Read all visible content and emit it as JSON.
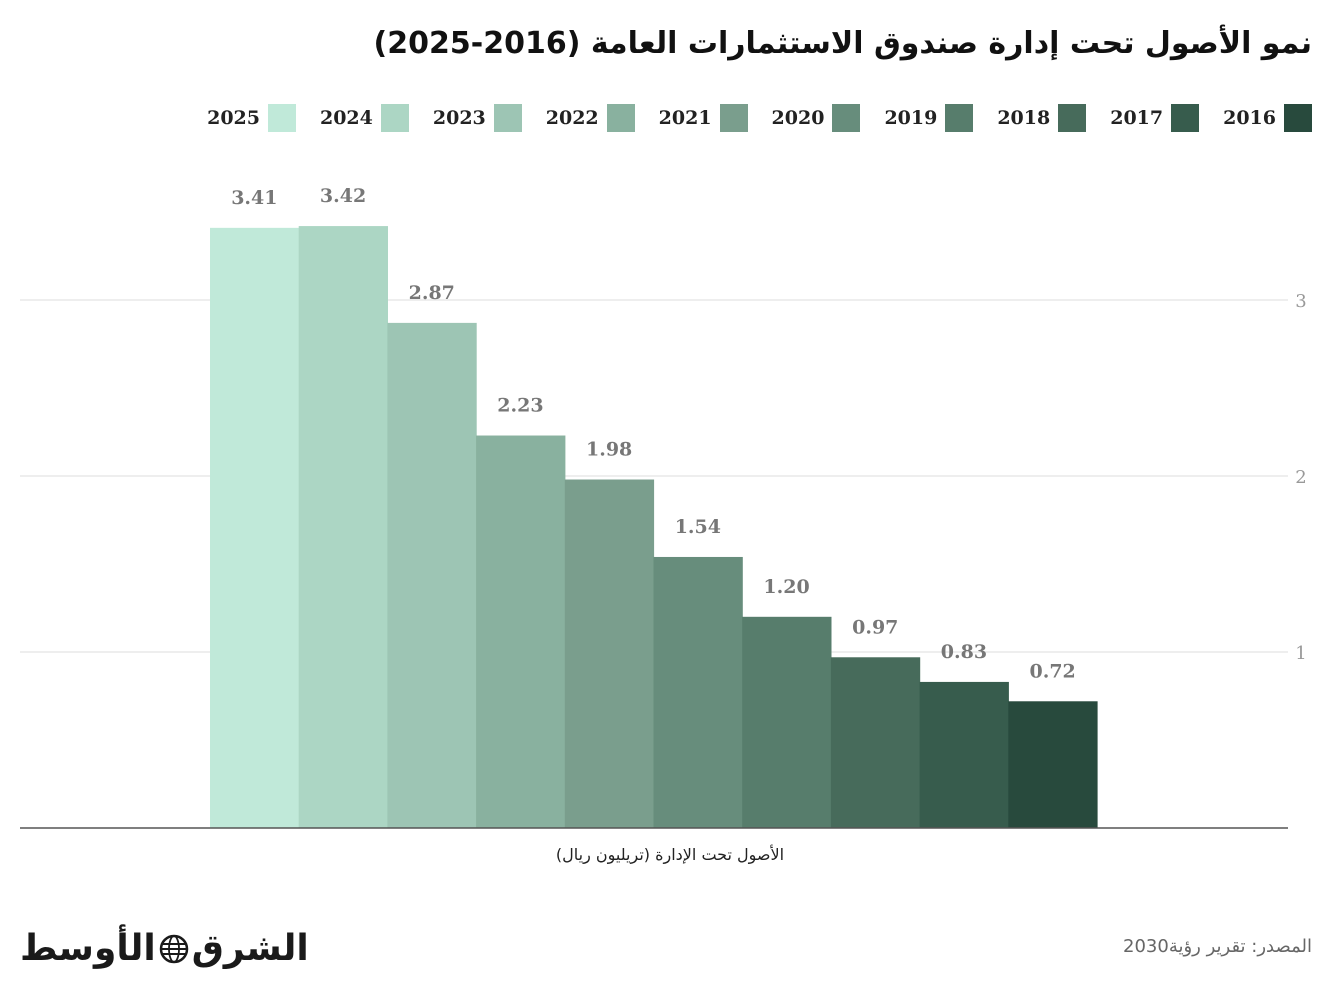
{
  "header": {
    "title": "نمو الأصول تحت إدارة صندوق الاستثمارات العامة (2016-2025)"
  },
  "chart_data": {
    "type": "bar",
    "title": "نمو الأصول تحت إدارة صندوق الاستثمارات العامة (2016-2025)",
    "xlabel": "الأصول تحت الإدارة (تريليون ريال)",
    "ylabel": "",
    "categories": [
      "2025",
      "2024",
      "2023",
      "2022",
      "2021",
      "2020",
      "2019",
      "2018",
      "2017",
      "2016"
    ],
    "values": [
      3.41,
      3.42,
      2.87,
      2.23,
      1.98,
      1.54,
      1.2,
      0.97,
      0.83,
      0.72
    ],
    "value_labels": [
      "3.41",
      "3.42",
      "2.87",
      "2.23",
      "1.98",
      "1.54",
      "1.20",
      "0.97",
      "0.83",
      "0.72"
    ],
    "colors": [
      "#c0e9d9",
      "#acd6c4",
      "#9dc5b4",
      "#89b19f",
      "#7a9e8d",
      "#678d7c",
      "#577d6c",
      "#476b5b",
      "#375c4d",
      "#284a3d"
    ],
    "ylim": [
      0,
      3.6
    ],
    "yticks": [
      1,
      2,
      3
    ],
    "ytick_labels": [
      "1",
      "2",
      "3"
    ],
    "grid": true,
    "legend": {
      "position": "top",
      "entries": [
        "2016",
        "2017",
        "2018",
        "2019",
        "2020",
        "2021",
        "2022",
        "2023",
        "2024",
        "2025"
      ]
    }
  },
  "footer": {
    "logo_parts": [
      "الشرق",
      "الأوسط"
    ],
    "source": "المصدر: تقرير رؤية2030"
  },
  "theme": {
    "grid_color": "#e4e4e4",
    "axis_color": "#555555",
    "tick_color": "#999999",
    "label_color": "#777777"
  }
}
